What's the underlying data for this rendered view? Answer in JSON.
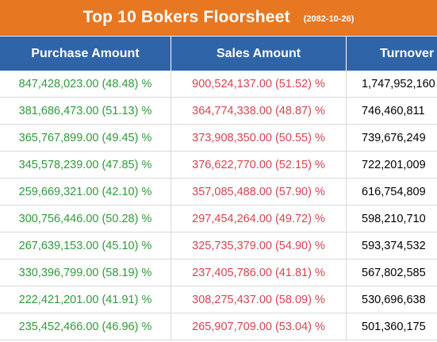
{
  "title": {
    "main": "Top 10 Bokers Floorsheet",
    "date": "(2082-10-26)"
  },
  "columns": {
    "purchase": "Purchase Amount",
    "sales": "Sales Amount",
    "turnover": "Turnover"
  },
  "rows": [
    {
      "purchase": "847,428,023.00 (48.48) %",
      "sales": "900,524,137.00 (51.52) %",
      "turnover": "1,747,952,160"
    },
    {
      "purchase": "381,686,473.00 (51.13) %",
      "sales": "364,774,338.00 (48.87) %",
      "turnover": "746,460,811"
    },
    {
      "purchase": "365,767,899.00 (49.45) %",
      "sales": "373,908,350.00 (50.55) %",
      "turnover": "739,676,249"
    },
    {
      "purchase": "345,578,239.00 (47.85) %",
      "sales": "376,622,770.00 (52.15) %",
      "turnover": "722,201,009"
    },
    {
      "purchase": "259,669,321.00 (42.10) %",
      "sales": "357,085,488.00 (57.90) %",
      "turnover": "616,754,809"
    },
    {
      "purchase": "300,756,446.00 (50.28) %",
      "sales": "297,454,264.00 (49.72) %",
      "turnover": "598,210,710"
    },
    {
      "purchase": "267,639,153.00 (45.10) %",
      "sales": "325,735,379.00 (54.90) %",
      "turnover": "593,374,532"
    },
    {
      "purchase": "330,396,799.00 (58.19) %",
      "sales": "237,405,786.00 (41.81) %",
      "turnover": "567,802,585"
    },
    {
      "purchase": "222,421,201.00 (41.91) %",
      "sales": "308,275,437.00 (58.09) %",
      "turnover": "530,696,638"
    },
    {
      "purchase": "235,452,466.00 (46.96) %",
      "sales": "265,907,709.00 (53.04) %",
      "turnover": "501,360,175"
    }
  ],
  "colors": {
    "title_bg": "#e87722",
    "header_bg": "#2f64a8",
    "purchase_text": "#2e9b3a",
    "sales_text": "#d9434e"
  }
}
